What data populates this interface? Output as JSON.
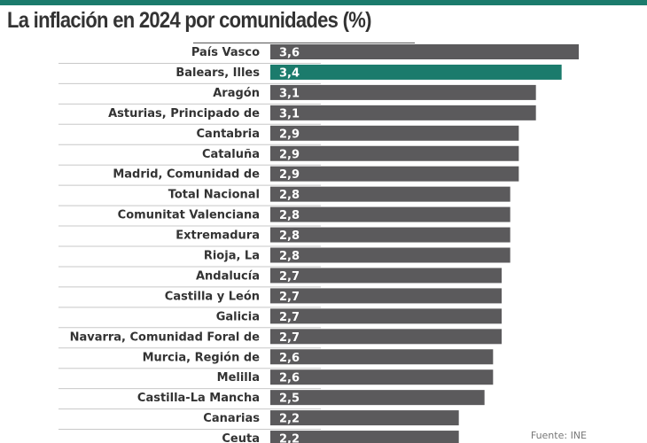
{
  "header": {
    "title": "La inflación en 2024 por comunidades (%)"
  },
  "footer": {
    "source": "Fuente: INE"
  },
  "colors": {
    "accent": "#1b7b6c",
    "bar": "#5b5a5c",
    "label": "#333333",
    "value_text": "#ffffff",
    "separator": "#c8c8c8"
  },
  "chart_data": {
    "type": "bar",
    "orientation": "horizontal",
    "title": "La inflación en 2024 por comunidades (%)",
    "xlabel": "",
    "ylabel": "",
    "xlim": [
      0,
      3.6
    ],
    "grid": false,
    "legend": "none",
    "highlight": "Balears, Illes",
    "categories": [
      "País Vasco",
      "Balears, Illes",
      "Aragón",
      "Asturias, Principado de",
      "Cantabria",
      "Cataluña",
      "Madrid, Comunidad de",
      "Total Nacional",
      "Comunitat Valenciana",
      "Extremadura",
      "Rioja, La",
      "Andalucía",
      "Castilla y León",
      "Galicia",
      "Navarra, Comunidad Foral de",
      "Murcia, Región de",
      "Melilla",
      "Castilla-La Mancha",
      "Canarias",
      "Ceuta"
    ],
    "values": [
      3.6,
      3.4,
      3.1,
      3.1,
      2.9,
      2.9,
      2.9,
      2.8,
      2.8,
      2.8,
      2.8,
      2.7,
      2.7,
      2.7,
      2.7,
      2.6,
      2.6,
      2.5,
      2.2,
      2.2
    ],
    "value_labels": [
      "3,6",
      "3,4",
      "3,1",
      "3,1",
      "2,9",
      "2,9",
      "2,9",
      "2,8",
      "2,8",
      "2,8",
      "2,8",
      "2,7",
      "2,7",
      "2,7",
      "2,7",
      "2,6",
      "2,6",
      "2,5",
      "2,2",
      "2,2"
    ],
    "source": "Fuente: INE"
  }
}
